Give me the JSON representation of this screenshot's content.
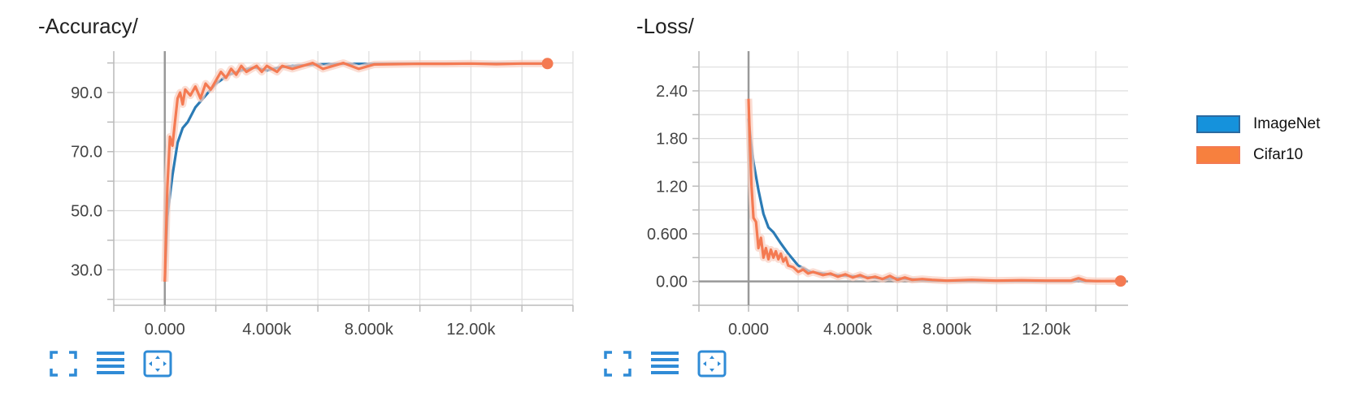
{
  "colors": {
    "imagenet": "#2b7bb5",
    "cifar10": "#f47a52",
    "cifar10_shade": "#f9cfc0",
    "grid": "#dddddd",
    "icon": "#2f8bd6"
  },
  "legend": [
    {
      "label": "ImageNet",
      "swatch": "#1592dc",
      "border": "#2b6aa0"
    },
    {
      "label": "Cifar10",
      "swatch": "#f7803e",
      "border": "#f47a52"
    }
  ],
  "chart_data": [
    {
      "type": "line",
      "title": "-Accuracy/",
      "xlim": [
        -2000,
        16000
      ],
      "ylim": [
        18,
        104
      ],
      "x_ticks": [
        0,
        4000,
        8000,
        12000
      ],
      "x_tick_labels": [
        "0.000",
        "4.000k",
        "8.000k",
        "12.00k"
      ],
      "y_ticks": [
        30,
        50,
        70,
        90
      ],
      "y_tick_labels": [
        "30.0",
        "50.0",
        "70.0",
        "90.0"
      ],
      "grid": true,
      "series": [
        {
          "name": "ImageNet",
          "x": [
            0,
            100,
            300,
            500,
            700,
            900,
            1200,
            1600,
            2000,
            2500,
            3000,
            3500,
            4000,
            4500,
            5000,
            6000,
            7000,
            8000,
            10000,
            12000,
            14000,
            15000
          ],
          "y": [
            26,
            48,
            62,
            73,
            78,
            80,
            85,
            89,
            93,
            96,
            97.5,
            98.5,
            97.5,
            98.5,
            99,
            99.5,
            99.7,
            99.7,
            99.8,
            99.8,
            99.8,
            99.8
          ]
        },
        {
          "name": "Cifar10",
          "x": [
            0,
            100,
            200,
            300,
            400,
            500,
            600,
            700,
            800,
            1000,
            1200,
            1400,
            1600,
            1800,
            2000,
            2200,
            2400,
            2600,
            2800,
            3000,
            3200,
            3400,
            3600,
            3800,
            4000,
            4200,
            4400,
            4600,
            5000,
            5400,
            5800,
            6200,
            6600,
            7000,
            7600,
            8200,
            9000,
            10000,
            11000,
            12000,
            13000,
            14000,
            15000
          ],
          "y": [
            26,
            58,
            75,
            72,
            80,
            88,
            90,
            86,
            91,
            89,
            92,
            88,
            93,
            91,
            94,
            97,
            95,
            98,
            96,
            99,
            97,
            98,
            99,
            97,
            99,
            98,
            97,
            99,
            98,
            99,
            100,
            98,
            99,
            100,
            98,
            99.5,
            99.6,
            99.7,
            99.7,
            99.8,
            99.6,
            99.8,
            99.8
          ]
        }
      ],
      "last_point": {
        "x": 15000,
        "y": 99.8
      }
    },
    {
      "type": "line",
      "title": "-Loss/",
      "xlim": [
        -2000,
        15300
      ],
      "ylim": [
        -0.3,
        2.9
      ],
      "x_ticks": [
        0,
        4000,
        8000,
        12000
      ],
      "x_tick_labels": [
        "0.000",
        "4.000k",
        "8.000k",
        "12.00k"
      ],
      "y_ticks": [
        0,
        0.6,
        1.2,
        1.8,
        2.4
      ],
      "y_tick_labels": [
        "0.00",
        "0.600",
        "1.20",
        "1.80",
        "2.40"
      ],
      "grid": true,
      "series": [
        {
          "name": "ImageNet",
          "x": [
            0,
            100,
            200,
            400,
            600,
            800,
            1000,
            1300,
            1600,
            2000,
            2500,
            3000,
            3500,
            4000,
            4500,
            5000,
            5500,
            6000,
            7000,
            8000,
            10000,
            12000,
            14000,
            14200
          ],
          "y": [
            2.05,
            1.75,
            1.5,
            1.15,
            0.85,
            0.68,
            0.62,
            0.48,
            0.35,
            0.2,
            0.12,
            0.1,
            0.08,
            0.07,
            0.06,
            0.05,
            0.03,
            0.04,
            0.02,
            0.01,
            0.01,
            0.005,
            0.005,
            0.005
          ]
        },
        {
          "name": "Cifar10",
          "x": [
            0,
            60,
            120,
            200,
            300,
            400,
            500,
            600,
            700,
            800,
            900,
            1000,
            1100,
            1200,
            1300,
            1400,
            1500,
            1600,
            1800,
            2000,
            2200,
            2400,
            2600,
            2800,
            3000,
            3300,
            3600,
            3900,
            4200,
            4500,
            4800,
            5100,
            5400,
            5700,
            6000,
            6300,
            6600,
            7000,
            7400,
            8000,
            9000,
            10000,
            11000,
            12000,
            13000,
            13300,
            13600,
            14000,
            15000
          ],
          "y": [
            2.3,
            1.7,
            1.2,
            0.8,
            0.75,
            0.42,
            0.55,
            0.3,
            0.42,
            0.28,
            0.4,
            0.3,
            0.38,
            0.28,
            0.35,
            0.25,
            0.3,
            0.2,
            0.18,
            0.12,
            0.15,
            0.1,
            0.12,
            0.1,
            0.08,
            0.1,
            0.06,
            0.09,
            0.05,
            0.08,
            0.04,
            0.06,
            0.03,
            0.07,
            0.02,
            0.05,
            0.02,
            0.03,
            0.02,
            0.01,
            0.02,
            0.01,
            0.015,
            0.01,
            0.01,
            0.04,
            0.01,
            0.005,
            0.005
          ]
        }
      ],
      "last_point": {
        "x": 15000,
        "y": 0.005
      }
    }
  ],
  "toolbar_icons": [
    "fullscreen-icon",
    "data-list-icon",
    "fit-domain-icon"
  ]
}
